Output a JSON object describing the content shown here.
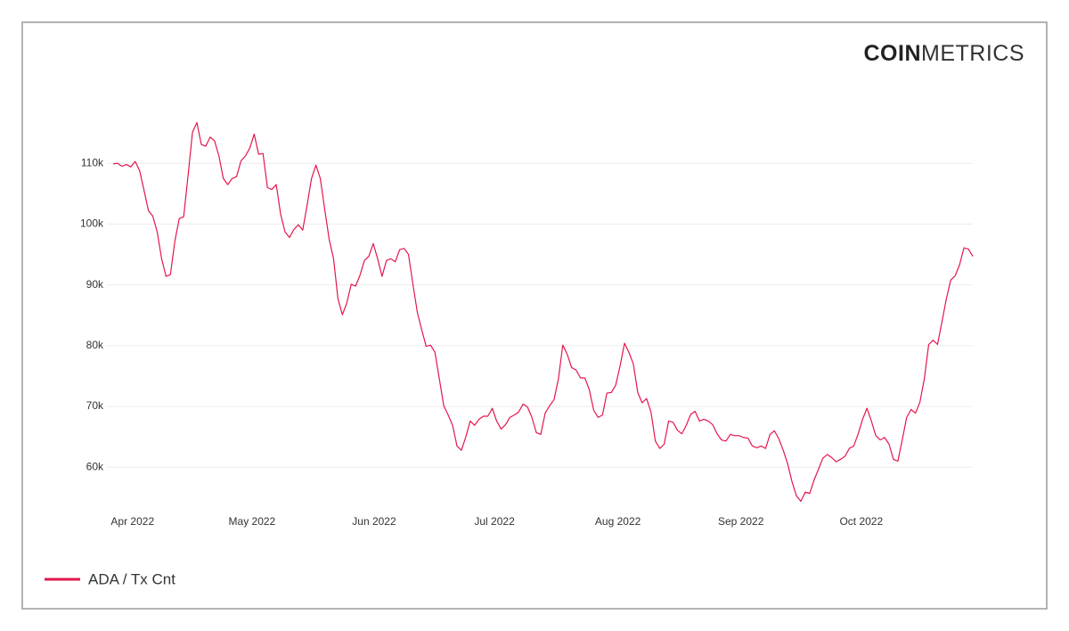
{
  "brand": {
    "bold": "COIN",
    "light": "METRICS"
  },
  "chart_data": {
    "type": "line",
    "series": [
      {
        "name": "ADA / Tx Cnt",
        "color": "#e3174b",
        "values": [
          109.9,
          110,
          109.5,
          109.8,
          109.4,
          110.3,
          108.8,
          105.6,
          102.2,
          101.3,
          98.7,
          94.3,
          91.4,
          91.7,
          97.2,
          100.9,
          101.2,
          108,
          115.1,
          116.7,
          113.1,
          112.8,
          114.3,
          113.7,
          111.2,
          107.5,
          106.5,
          107.5,
          107.8,
          110.4,
          111.2,
          112.5,
          114.8,
          111.5,
          111.6,
          106,
          105.7,
          106.5,
          101.6,
          98.7,
          97.8,
          99.1,
          99.9,
          99,
          103.1,
          107.5,
          109.7,
          107.5,
          102.4,
          97.5,
          94.3,
          87.7,
          85.1,
          87,
          90.1,
          89.8,
          91.6,
          94,
          94.7,
          96.8,
          94.3,
          91.4,
          94,
          94.3,
          93.8,
          95.8,
          96,
          95,
          90.1,
          85.5,
          82.6,
          79.9,
          80.1,
          78.9,
          74.5,
          70.1,
          68.6,
          66.9,
          63.5,
          62.8,
          65,
          67.6,
          66.9,
          67.9,
          68.4,
          68.4,
          69.7,
          67.6,
          66.3,
          67,
          68.2,
          68.6,
          69.1,
          70.4,
          69.9,
          68.2,
          65.7,
          65.4,
          68.9,
          70.1,
          71.1,
          74.5,
          80.1,
          78.6,
          76.4,
          76,
          74.7,
          74.7,
          72.8,
          69.4,
          68.2,
          68.6,
          72.2,
          72.3,
          73.5,
          76.7,
          80.4,
          78.9,
          77,
          72.3,
          70.6,
          71.3,
          69.1,
          64.3,
          63.1,
          63.8,
          67.6,
          67.4,
          66.1,
          65.5,
          66.9,
          68.7,
          69.2,
          67.6,
          67.9,
          67.6,
          67,
          65.5,
          64.5,
          64.3,
          65.4,
          65.2,
          65.2,
          64.9,
          64.8,
          63.5,
          63.2,
          63.5,
          63.1,
          65.4,
          66,
          64.7,
          62.8,
          60.6,
          57.6,
          55.3,
          54.4,
          55.9,
          55.7,
          57.9,
          59.7,
          61.5,
          62.1,
          61.6,
          60.9,
          61.3,
          61.8,
          63.1,
          63.5,
          65.5,
          67.9,
          69.7,
          67.6,
          65.2,
          64.5,
          64.9,
          63.8,
          61.3,
          61,
          64.5,
          68.2,
          69.5,
          68.9,
          70.7,
          74.5,
          80.2,
          80.9,
          80.2,
          83.9,
          87.7,
          90.8,
          91.5,
          93.3,
          96.1,
          95.9,
          94.7
        ]
      }
    ],
    "xlim": [
      0,
      195
    ],
    "xticks": [
      {
        "value": 4.4,
        "label": "Apr 2022"
      },
      {
        "value": 31.5,
        "label": "May 2022"
      },
      {
        "value": 59.2,
        "label": "Jun 2022"
      },
      {
        "value": 86.5,
        "label": "Jul 2022"
      },
      {
        "value": 114.5,
        "label": "Aug 2022"
      },
      {
        "value": 142.4,
        "label": "Sep 2022"
      },
      {
        "value": 169.7,
        "label": "Oct 2022"
      }
    ],
    "ylim": [
      53.3,
      117.8
    ],
    "yticks": [
      {
        "value": 60,
        "label": "60k"
      },
      {
        "value": 70,
        "label": "70k"
      },
      {
        "value": 80,
        "label": "80k"
      },
      {
        "value": 90,
        "label": "90k"
      },
      {
        "value": 100,
        "label": "100k"
      },
      {
        "value": 110,
        "label": "110k"
      }
    ],
    "grid": true
  }
}
